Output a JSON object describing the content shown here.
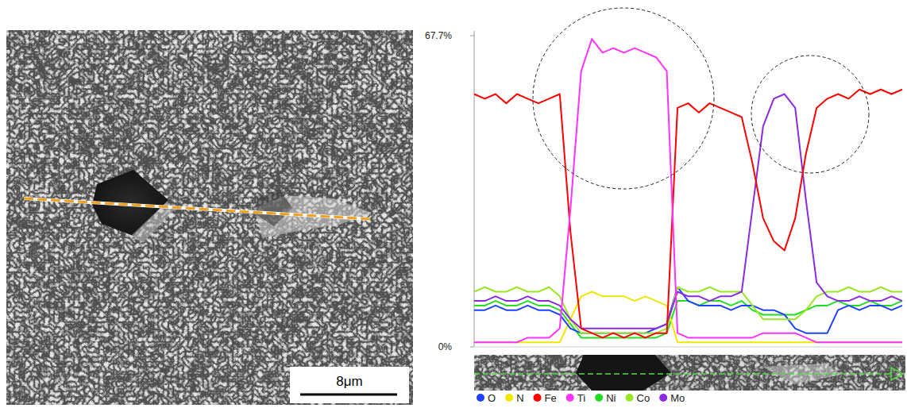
{
  "chart_data": {
    "type": "line",
    "x": [
      0,
      2.5,
      5,
      7.5,
      10,
      12.5,
      15,
      17.5,
      20,
      22.5,
      25,
      27.5,
      30,
      32.5,
      35,
      37.5,
      40,
      42.5,
      45,
      47.5,
      50,
      52.5,
      55,
      57.5,
      60,
      62.5,
      65,
      67.5,
      70,
      72.5,
      75,
      77.5,
      80,
      82.5,
      85,
      87.5,
      90,
      92.5,
      95,
      97.5,
      100
    ],
    "xlim": [
      0,
      100
    ],
    "ylim": [
      0,
      67.7
    ],
    "yticks": [
      {
        "value": 0,
        "label": "0%"
      },
      {
        "value": 67.7,
        "label": "67.7%"
      }
    ],
    "tick_labels": "y",
    "legend": "bottom",
    "series": [
      {
        "name": "O",
        "color": "#2040ff",
        "values": [
          8,
          8,
          9,
          8,
          8,
          9,
          8,
          8,
          7,
          4,
          3,
          3,
          3,
          3,
          3,
          3,
          3,
          4,
          5,
          13,
          10,
          9,
          9,
          9,
          8,
          9,
          9,
          8,
          8,
          7,
          4,
          3,
          3,
          3,
          8,
          9,
          8,
          9,
          9,
          8,
          9
        ]
      },
      {
        "name": "N",
        "color": "#f2e600",
        "values": [
          1,
          1,
          1,
          1,
          1,
          1,
          1,
          1,
          1,
          6,
          11,
          12,
          11,
          11,
          11,
          10,
          11,
          10,
          9,
          1,
          1,
          1,
          1,
          1,
          1,
          1,
          1,
          1,
          1,
          1,
          1,
          1,
          1,
          1,
          1,
          1,
          1,
          1,
          1,
          1,
          1
        ]
      },
      {
        "name": "Fe",
        "color": "#ff0000",
        "values": [
          55,
          54,
          55,
          53,
          55,
          54,
          53,
          54,
          55,
          25,
          4,
          3,
          2,
          3,
          2,
          3,
          2,
          3,
          3,
          52,
          53,
          51,
          53,
          52,
          51,
          50,
          40,
          28,
          23,
          21,
          28,
          42,
          52,
          54,
          55,
          54,
          56,
          55,
          56,
          55,
          56
        ]
      },
      {
        "name": "Ti",
        "color": "#ff33ff",
        "values": [
          1,
          1,
          1,
          1,
          1,
          2,
          2,
          2,
          4,
          30,
          60,
          67,
          64,
          65,
          64,
          65,
          64,
          63,
          60,
          3,
          2,
          2,
          2,
          2,
          2,
          2,
          2,
          3,
          3,
          3,
          3,
          2,
          1,
          1,
          1,
          1,
          1,
          1,
          1,
          1,
          1
        ]
      },
      {
        "name": "Ni",
        "color": "#22dd22",
        "values": [
          9,
          9,
          10,
          9,
          9,
          10,
          9,
          9,
          8,
          5,
          2,
          2,
          2,
          2,
          2,
          2,
          2,
          2,
          3,
          10,
          10,
          9,
          10,
          10,
          9,
          10,
          8,
          7,
          7,
          7,
          7,
          8,
          9,
          9,
          10,
          9,
          9,
          10,
          9,
          9,
          10
        ]
      },
      {
        "name": "Co",
        "color": "#99e626",
        "values": [
          12,
          13,
          12,
          12,
          13,
          12,
          12,
          13,
          11,
          6,
          3,
          3,
          3,
          3,
          3,
          3,
          3,
          3,
          4,
          13,
          12,
          12,
          13,
          12,
          12,
          12,
          9,
          6,
          6,
          6,
          6,
          8,
          11,
          12,
          12,
          13,
          12,
          12,
          13,
          12,
          12
        ]
      },
      {
        "name": "Mo",
        "color": "#8a2be2",
        "values": [
          10,
          10,
          11,
          10,
          10,
          11,
          10,
          10,
          9,
          6,
          4,
          4,
          4,
          4,
          4,
          4,
          4,
          4,
          5,
          12,
          11,
          11,
          10,
          11,
          11,
          12,
          30,
          48,
          54,
          55,
          52,
          32,
          14,
          11,
          10,
          10,
          11,
          10,
          10,
          11,
          10
        ]
      }
    ]
  },
  "micrograph": {
    "scale_bar": "8μm"
  }
}
